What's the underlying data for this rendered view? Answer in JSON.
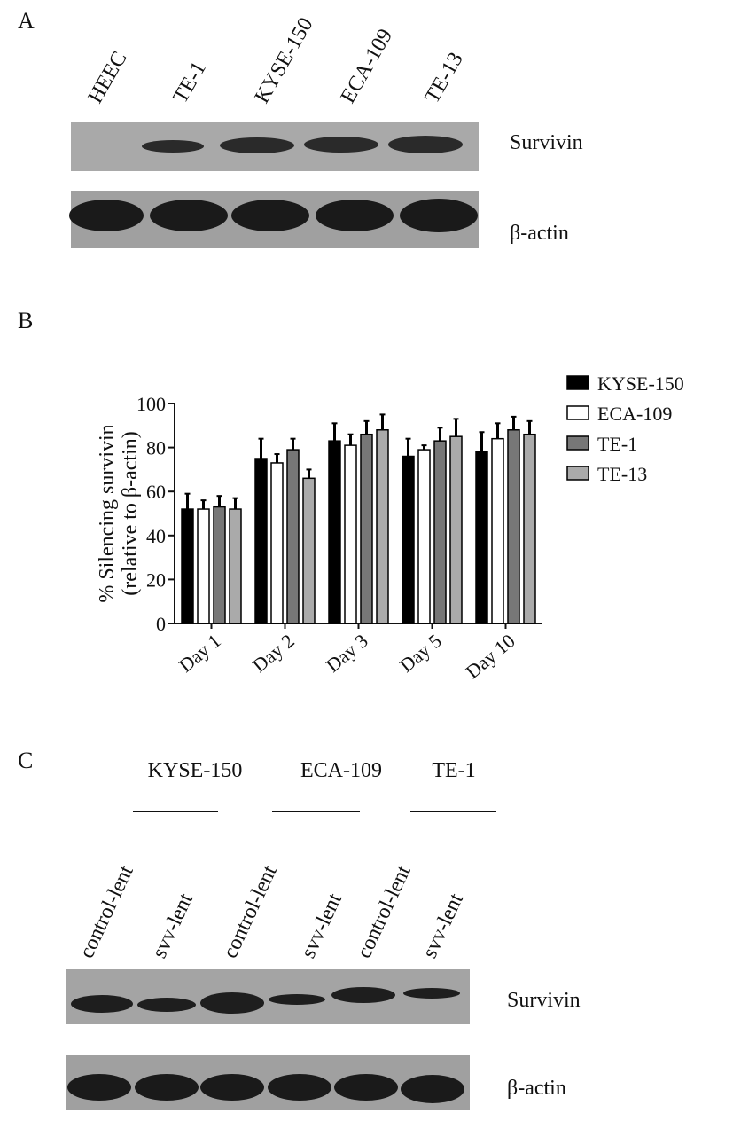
{
  "panel_a": {
    "label": "A",
    "lanes": [
      "HEEC",
      "TE-1",
      "KYSE-150",
      "ECA-109",
      "TE-13"
    ],
    "bands": [
      "Survivin",
      "β-actin"
    ]
  },
  "panel_b": {
    "label": "B"
  },
  "chart_data": {
    "type": "bar",
    "y_label": [
      "% Silencing survivin",
      "(relative to β-actin)"
    ],
    "categories": [
      "Day 1",
      "Day 2",
      "Day 3",
      "Day 5",
      "Day 10"
    ],
    "series": [
      {
        "name": "KYSE-150",
        "color": "#000000",
        "values": [
          52,
          75,
          83,
          76,
          78
        ],
        "errors": [
          7,
          9,
          8,
          8,
          9
        ]
      },
      {
        "name": "ECA-109",
        "color": "#ffffff",
        "values": [
          52,
          73,
          81,
          79,
          84
        ],
        "errors": [
          4,
          4,
          5,
          2,
          7
        ]
      },
      {
        "name": "TE-1",
        "color": "#777777",
        "values": [
          53,
          79,
          86,
          83,
          88
        ],
        "errors": [
          5,
          5,
          6,
          6,
          6
        ]
      },
      {
        "name": "TE-13",
        "color": "#aaaaaa",
        "values": [
          52,
          66,
          88,
          85,
          86
        ],
        "errors": [
          5,
          4,
          7,
          8,
          6
        ]
      }
    ],
    "ylim": [
      0,
      100
    ],
    "yticks": [
      0,
      20,
      40,
      60,
      80,
      100
    ]
  },
  "panel_c": {
    "label": "C",
    "groups": [
      "KYSE-150",
      "ECA-109",
      "TE-1"
    ],
    "lanes": [
      "control-lent",
      "svv-lent",
      "control-lent",
      "svv-lent",
      "control-lent",
      "svv-lent"
    ],
    "bands": [
      "Survivin",
      "β-actin"
    ]
  }
}
